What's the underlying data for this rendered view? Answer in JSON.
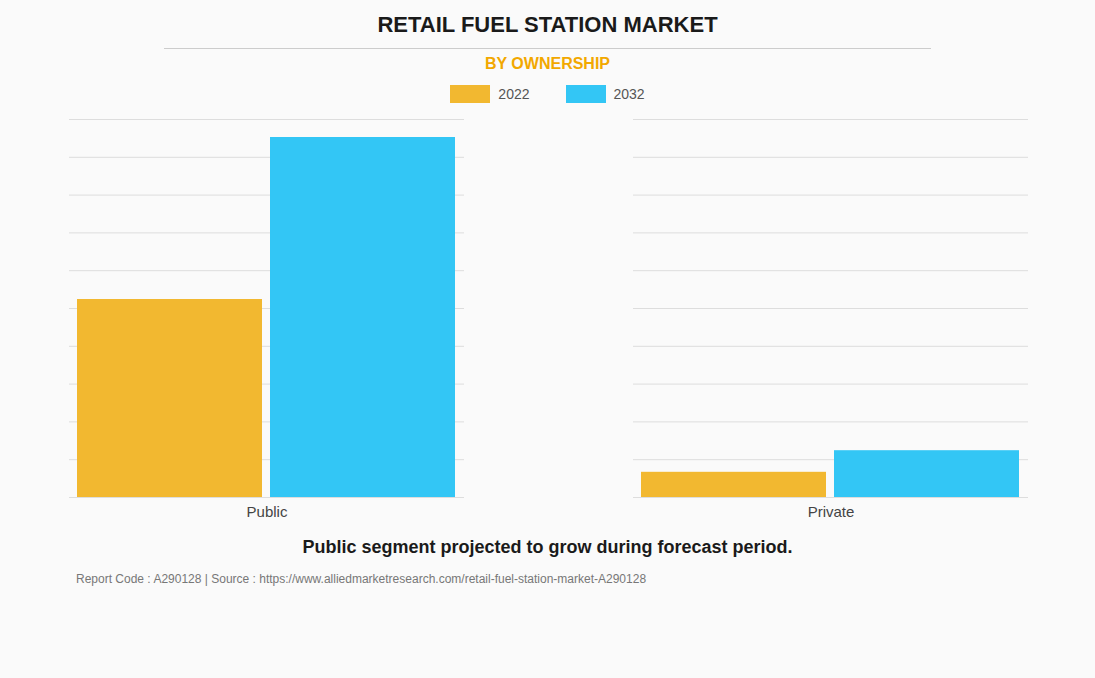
{
  "chart_data": {
    "type": "bar",
    "title": "RETAIL FUEL STATION MARKET",
    "subtitle": "BY OWNERSHIP",
    "categories": [
      "Public",
      "Private"
    ],
    "series": [
      {
        "name": "2022",
        "color": "#F2B830",
        "values": [
          55,
          7
        ]
      },
      {
        "name": "2032",
        "color": "#33C6F5",
        "values": [
          100,
          13
        ]
      }
    ],
    "ylim": [
      0,
      105
    ],
    "yticks": [
      0,
      10.5,
      21,
      31.5,
      42,
      52.5,
      63,
      73.5,
      84,
      94.5,
      105
    ],
    "grid": true,
    "tick_labels": "x",
    "legend": "top",
    "annotation": "Public segment projected to grow during forecast period.",
    "footer": "Report Code : A290128  |  Source : https://www.alliedmarketresearch.com/retail-fuel-station-market-A290128"
  }
}
